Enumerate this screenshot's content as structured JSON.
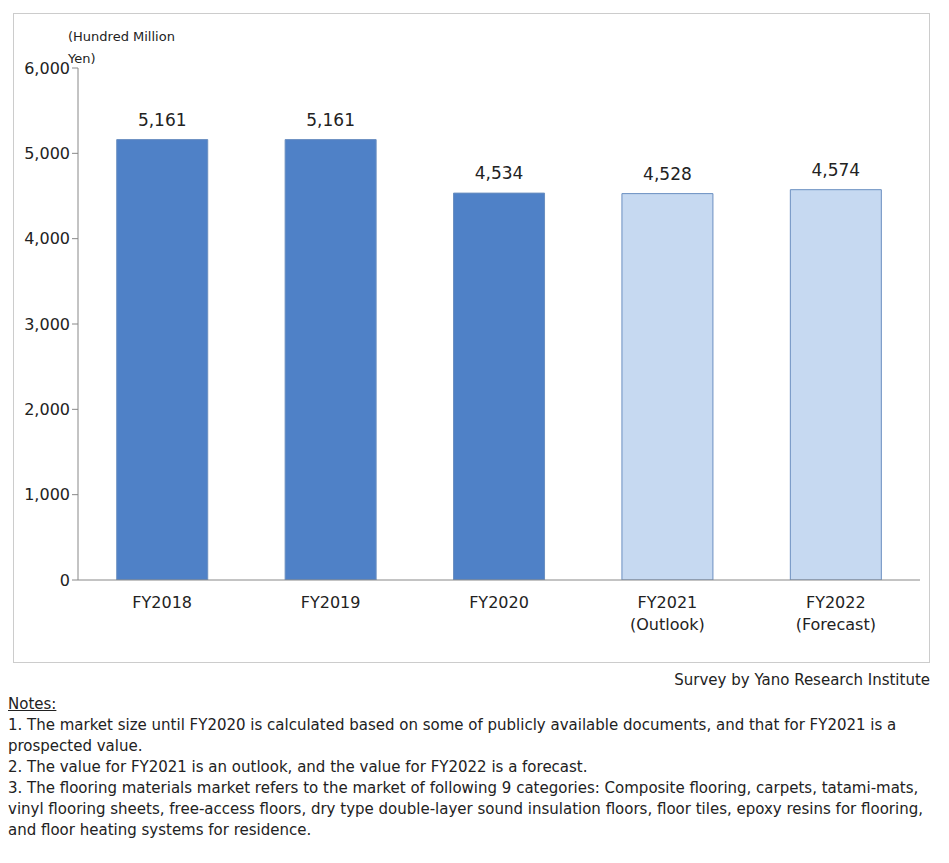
{
  "chart_data": {
    "type": "bar",
    "y_label": "(Hundred Million Yen)",
    "categories": [
      "FY2018",
      "FY2019",
      "FY2020",
      "FY2021\n(Outlook)",
      "FY2022\n(Forecast)"
    ],
    "values": [
      5161,
      5161,
      4534,
      4528,
      4574
    ],
    "value_labels": [
      "5,161",
      "5,161",
      "4,534",
      "4,528",
      "4,574"
    ],
    "colors": [
      "#4f81c7",
      "#4f81c7",
      "#4f81c7",
      "#c6d9f1",
      "#c6d9f1"
    ],
    "ylim": [
      0,
      6000
    ],
    "yticks": [
      0,
      {
        "value": 1000,
        "label": "1,000"
      },
      {
        "value": 2000,
        "label": "2,000"
      },
      {
        "value": 3000,
        "label": "3,000"
      },
      {
        "value": 4000,
        "label": "4,000"
      },
      {
        "value": 5000,
        "label": "5,000"
      },
      {
        "value": 6000,
        "label": "6,000"
      }
    ],
    "grid": false,
    "data_labels": true,
    "source": "Survey by Yano Research Institute",
    "notes_title": "Notes:",
    "notes": [
      "1.  The market size until FY2020 is calculated based on some of publicly available documents, and that for FY2021 is a prospected value.",
      "2.  The value for FY2021 is an outlook, and the value for FY2022 is a forecast.",
      "3.  The flooring materials market refers to the market of following 9 categories: Composite flooring, carpets, tatami-mats, vinyl flooring sheets, free-access floors, dry type double-layer sound insulation floors, floor tiles, epoxy resins for flooring, and floor heating systems for residence."
    ]
  }
}
